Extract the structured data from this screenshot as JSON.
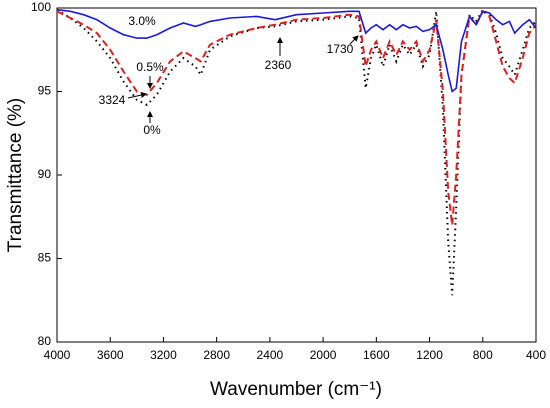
{
  "chart_data": {
    "type": "line",
    "xlabel": "Wavenumber (cm⁻¹)",
    "ylabel": "Transmittance (%)",
    "x": [
      4000,
      3900,
      3800,
      3700,
      3600,
      3500,
      3400,
      3324,
      3250,
      3150,
      3050,
      2960,
      2920,
      2850,
      2700,
      2500,
      2360,
      2200,
      2000,
      1800,
      1730,
      1680,
      1640,
      1600,
      1550,
      1500,
      1450,
      1400,
      1350,
      1300,
      1250,
      1200,
      1150,
      1100,
      1060,
      1030,
      1000,
      960,
      900,
      850,
      800,
      750,
      700,
      650,
      600,
      560,
      500,
      450,
      400
    ],
    "series": [
      {
        "name": "0%",
        "color": "#000000",
        "dash": "dotted",
        "values": [
          99.9,
          99.4,
          98.8,
          98.0,
          97.0,
          95.6,
          94.5,
          94.2,
          94.8,
          96.2,
          97.0,
          96.5,
          96.0,
          97.5,
          98.3,
          98.8,
          98.9,
          99.2,
          99.3,
          99.5,
          99.4,
          95.2,
          97.0,
          97.8,
          96.5,
          97.8,
          96.8,
          97.8,
          97.2,
          97.8,
          96.5,
          97.2,
          99.8,
          94.0,
          86.0,
          82.8,
          88.0,
          96.0,
          99.6,
          99.2,
          99.9,
          99.6,
          98.5,
          97.0,
          96.5,
          96.0,
          97.5,
          98.8,
          99.2
        ]
      },
      {
        "name": "0.5%",
        "color": "#e02020",
        "dash": "dashed",
        "values": [
          99.8,
          99.4,
          99.0,
          98.5,
          97.5,
          96.2,
          95.0,
          94.8,
          95.5,
          96.8,
          97.4,
          97.0,
          96.8,
          97.8,
          98.4,
          98.8,
          99.0,
          99.3,
          99.4,
          99.6,
          99.5,
          96.5,
          97.5,
          98.0,
          97.0,
          98.0,
          97.2,
          98.0,
          97.5,
          98.0,
          96.8,
          97.5,
          99.3,
          95.0,
          89.0,
          87.0,
          90.0,
          96.0,
          99.5,
          99.0,
          99.8,
          99.5,
          98.0,
          96.5,
          95.8,
          95.5,
          97.0,
          98.5,
          99.0
        ]
      },
      {
        "name": "3.0%",
        "color": "#1a1adb",
        "dash": "solid",
        "values": [
          99.9,
          99.8,
          99.6,
          99.3,
          98.8,
          98.4,
          98.2,
          98.2,
          98.4,
          98.8,
          99.1,
          98.9,
          99.0,
          99.2,
          99.4,
          99.5,
          99.3,
          99.6,
          99.7,
          99.8,
          99.8,
          98.5,
          98.8,
          99.0,
          98.7,
          99.0,
          98.7,
          99.0,
          98.8,
          98.9,
          98.6,
          98.7,
          99.0,
          97.5,
          96.0,
          95.0,
          95.2,
          98.0,
          99.5,
          99.0,
          99.8,
          99.7,
          99.3,
          99.0,
          99.2,
          98.5,
          99.0,
          99.3,
          98.8
        ]
      }
    ],
    "annotations": [
      "3324",
      "2360",
      "1730"
    ],
    "xlim": [
      4000,
      400
    ],
    "xticks": [
      4000,
      3600,
      3200,
      2800,
      2400,
      2000,
      1600,
      1200,
      800,
      400
    ],
    "ylim": [
      80,
      100
    ],
    "yticks": [
      80,
      85,
      90,
      95,
      100
    ],
    "grid": false,
    "legend": false
  }
}
